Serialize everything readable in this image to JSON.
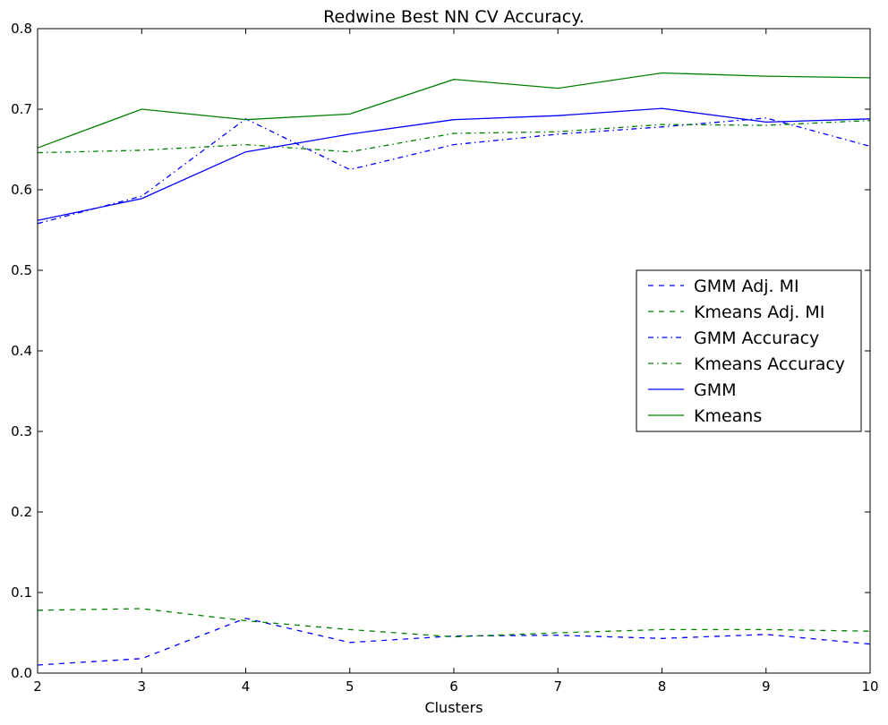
{
  "chart_data": {
    "type": "line",
    "title": "Redwine Best NN CV Accuracy.",
    "xlabel": "Clusters",
    "ylabel": "",
    "xlim": [
      2,
      10
    ],
    "ylim": [
      0.0,
      0.8
    ],
    "x": [
      2,
      3,
      4,
      5,
      6,
      7,
      8,
      9,
      10
    ],
    "xticks": [
      "2",
      "3",
      "4",
      "5",
      "6",
      "7",
      "8",
      "9",
      "10"
    ],
    "yticks": [
      "0.0",
      "0.1",
      "0.2",
      "0.3",
      "0.4",
      "0.5",
      "0.6",
      "0.7",
      "0.8"
    ],
    "grid": false,
    "legend_position": "center-right",
    "series": [
      {
        "name": "GMM Adj. MI",
        "color": "#0000ff",
        "style": "dashed",
        "values": [
          0.01,
          0.018,
          0.068,
          0.038,
          0.046,
          0.047,
          0.043,
          0.048,
          0.036
        ]
      },
      {
        "name": "Kmeans Adj. MI",
        "color": "#008000",
        "style": "dashed",
        "values": [
          0.078,
          0.08,
          0.065,
          0.054,
          0.045,
          0.05,
          0.054,
          0.054,
          0.052
        ]
      },
      {
        "name": "GMM Accuracy",
        "color": "#0000ff",
        "style": "dashdot",
        "values": [
          0.558,
          0.592,
          0.688,
          0.625,
          0.656,
          0.669,
          0.678,
          0.689,
          0.654
        ]
      },
      {
        "name": "Kmeans Accuracy",
        "color": "#008000",
        "style": "dashdot",
        "values": [
          0.646,
          0.649,
          0.656,
          0.647,
          0.67,
          0.672,
          0.681,
          0.68,
          0.686
        ]
      },
      {
        "name": "GMM",
        "color": "#0000ff",
        "style": "solid",
        "values": [
          0.562,
          0.589,
          0.647,
          0.669,
          0.687,
          0.692,
          0.701,
          0.684,
          0.688
        ]
      },
      {
        "name": "Kmeans",
        "color": "#008000",
        "style": "solid",
        "values": [
          0.652,
          0.7,
          0.687,
          0.694,
          0.737,
          0.726,
          0.745,
          0.741,
          0.739
        ]
      }
    ]
  }
}
